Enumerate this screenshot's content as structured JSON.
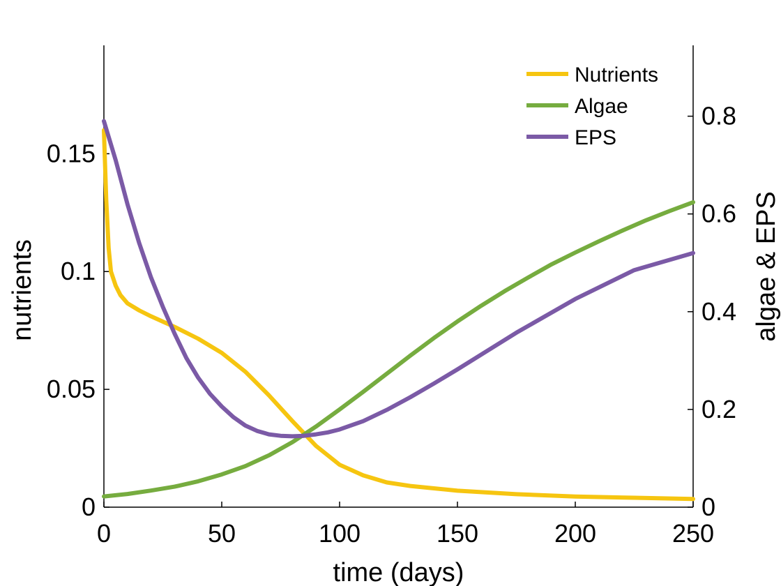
{
  "chart_data": {
    "type": "line",
    "xlabel": "time (days)",
    "ylabel_left": "nutrients",
    "ylabel_right": "algae & EPS",
    "xlim": [
      0,
      250
    ],
    "ylim_left": [
      0,
      0.196
    ],
    "ylim_right": [
      0,
      0.945
    ],
    "x_ticks": [
      0,
      50,
      100,
      150,
      200,
      250
    ],
    "x_tick_labels": [
      "0",
      "50",
      "100",
      "150",
      "200",
      "250"
    ],
    "y_left_ticks": [
      0,
      0.05,
      0.1,
      0.15
    ],
    "y_left_tick_labels": [
      "0",
      "0.05",
      "0.1",
      "0.15"
    ],
    "y_right_ticks": [
      0,
      0.2,
      0.4,
      0.6,
      0.8
    ],
    "y_right_tick_labels": [
      "0",
      "0.2",
      "0.4",
      "0.6",
      "0.8"
    ],
    "grid": false,
    "legend_position": "top-right",
    "series": [
      {
        "name": "Nutrients",
        "axis": "left",
        "color": "#F6C510",
        "x": [
          0,
          1,
          2,
          3,
          5,
          7,
          10,
          15,
          20,
          30,
          40,
          50,
          60,
          70,
          80,
          90,
          100,
          110,
          120,
          130,
          140,
          150,
          175,
          200,
          225,
          250
        ],
        "y": [
          0.16,
          0.13,
          0.11,
          0.1,
          0.094,
          0.09,
          0.0865,
          0.0835,
          0.081,
          0.0765,
          0.0715,
          0.0655,
          0.0575,
          0.0475,
          0.0365,
          0.026,
          0.018,
          0.0135,
          0.0105,
          0.009,
          0.008,
          0.007,
          0.0055,
          0.0045,
          0.004,
          0.0035
        ]
      },
      {
        "name": "Algae",
        "axis": "right",
        "color": "#76AC3F",
        "x": [
          0,
          10,
          20,
          30,
          40,
          50,
          60,
          70,
          80,
          90,
          100,
          110,
          120,
          130,
          140,
          150,
          160,
          170,
          180,
          190,
          200,
          210,
          220,
          230,
          240,
          250
        ],
        "y": [
          0.022,
          0.027,
          0.034,
          0.042,
          0.053,
          0.067,
          0.084,
          0.106,
          0.133,
          0.165,
          0.2,
          0.236,
          0.273,
          0.31,
          0.346,
          0.38,
          0.412,
          0.442,
          0.47,
          0.497,
          0.521,
          0.544,
          0.566,
          0.587,
          0.606,
          0.624
        ]
      },
      {
        "name": "EPS",
        "axis": "right",
        "color": "#7B5AA6",
        "x": [
          0,
          5,
          10,
          15,
          20,
          25,
          30,
          35,
          40,
          45,
          50,
          55,
          60,
          65,
          70,
          75,
          80,
          85,
          90,
          95,
          100,
          110,
          120,
          130,
          140,
          150,
          175,
          200,
          225,
          250
        ],
        "y": [
          0.79,
          0.71,
          0.62,
          0.54,
          0.47,
          0.41,
          0.355,
          0.305,
          0.265,
          0.232,
          0.206,
          0.184,
          0.167,
          0.156,
          0.149,
          0.146,
          0.145,
          0.146,
          0.149,
          0.153,
          0.159,
          0.176,
          0.199,
          0.225,
          0.253,
          0.282,
          0.357,
          0.426,
          0.485,
          0.52
        ]
      }
    ]
  }
}
